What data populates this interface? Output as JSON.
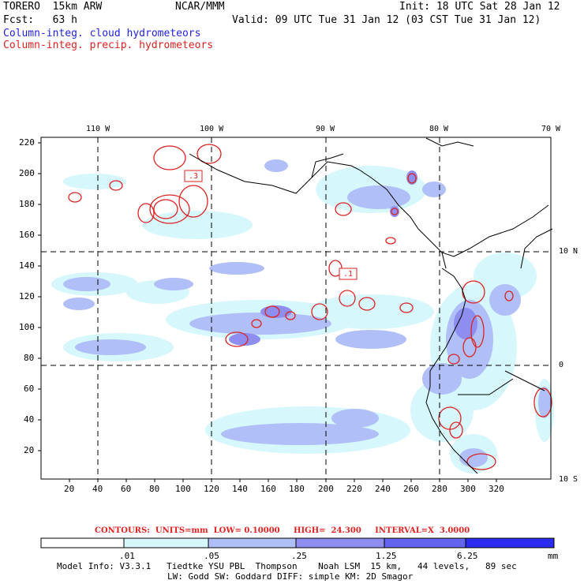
{
  "header": {
    "model": "TORERO  15km ARW",
    "org": "NCAR/MMM",
    "init": "Init: 18 UTC Sat 28 Jan 12",
    "fcst": "Fcst:   63 h",
    "valid": "Valid: 09 UTC Tue 31 Jan 12 (03 CST Tue 31 Jan 12)",
    "field1": "Column-integ. cloud hydrometeors",
    "field2": "Column-integ. precip. hydrometeors"
  },
  "lon_labels": [
    "110 W",
    "100 W",
    "90 W",
    "80 W",
    "70 W"
  ],
  "lat_labels": [
    "10 N",
    "0",
    "10 S"
  ],
  "y_grid_labels": [
    "220",
    "200",
    "180",
    "160",
    "140",
    "120",
    "100",
    "80",
    "60",
    "40",
    "20"
  ],
  "x_grid_labels": [
    "20",
    "40",
    "60",
    "80",
    "100",
    "120",
    "140",
    "160",
    "180",
    "200",
    "220",
    "240",
    "260",
    "280",
    "300",
    "320"
  ],
  "contour_labels": [
    ".3",
    ".1"
  ],
  "contour_info": "CONTOURS:  UNITS=mm  LOW= 0.10000     HIGH=  24.300     INTERVAL=X  3.0000",
  "colorbar": {
    "ticks": [
      ".01",
      ".05",
      ".25",
      "1.25",
      "6.25"
    ],
    "unit": "mm",
    "colors": [
      "#ffffff",
      "#d6f7fb",
      "#b0bff7",
      "#8e8ef0",
      "#6464ee",
      "#2c2cf0"
    ]
  },
  "footer": {
    "line1": "Model Info: V3.3.1   Tiedtke YSU PBL  Thompson    Noah LSM  15 km,   44 levels,   89 sec",
    "line2": "LW: Godd SW: Goddard DIFF: simple KM: 2D Smagor"
  }
}
